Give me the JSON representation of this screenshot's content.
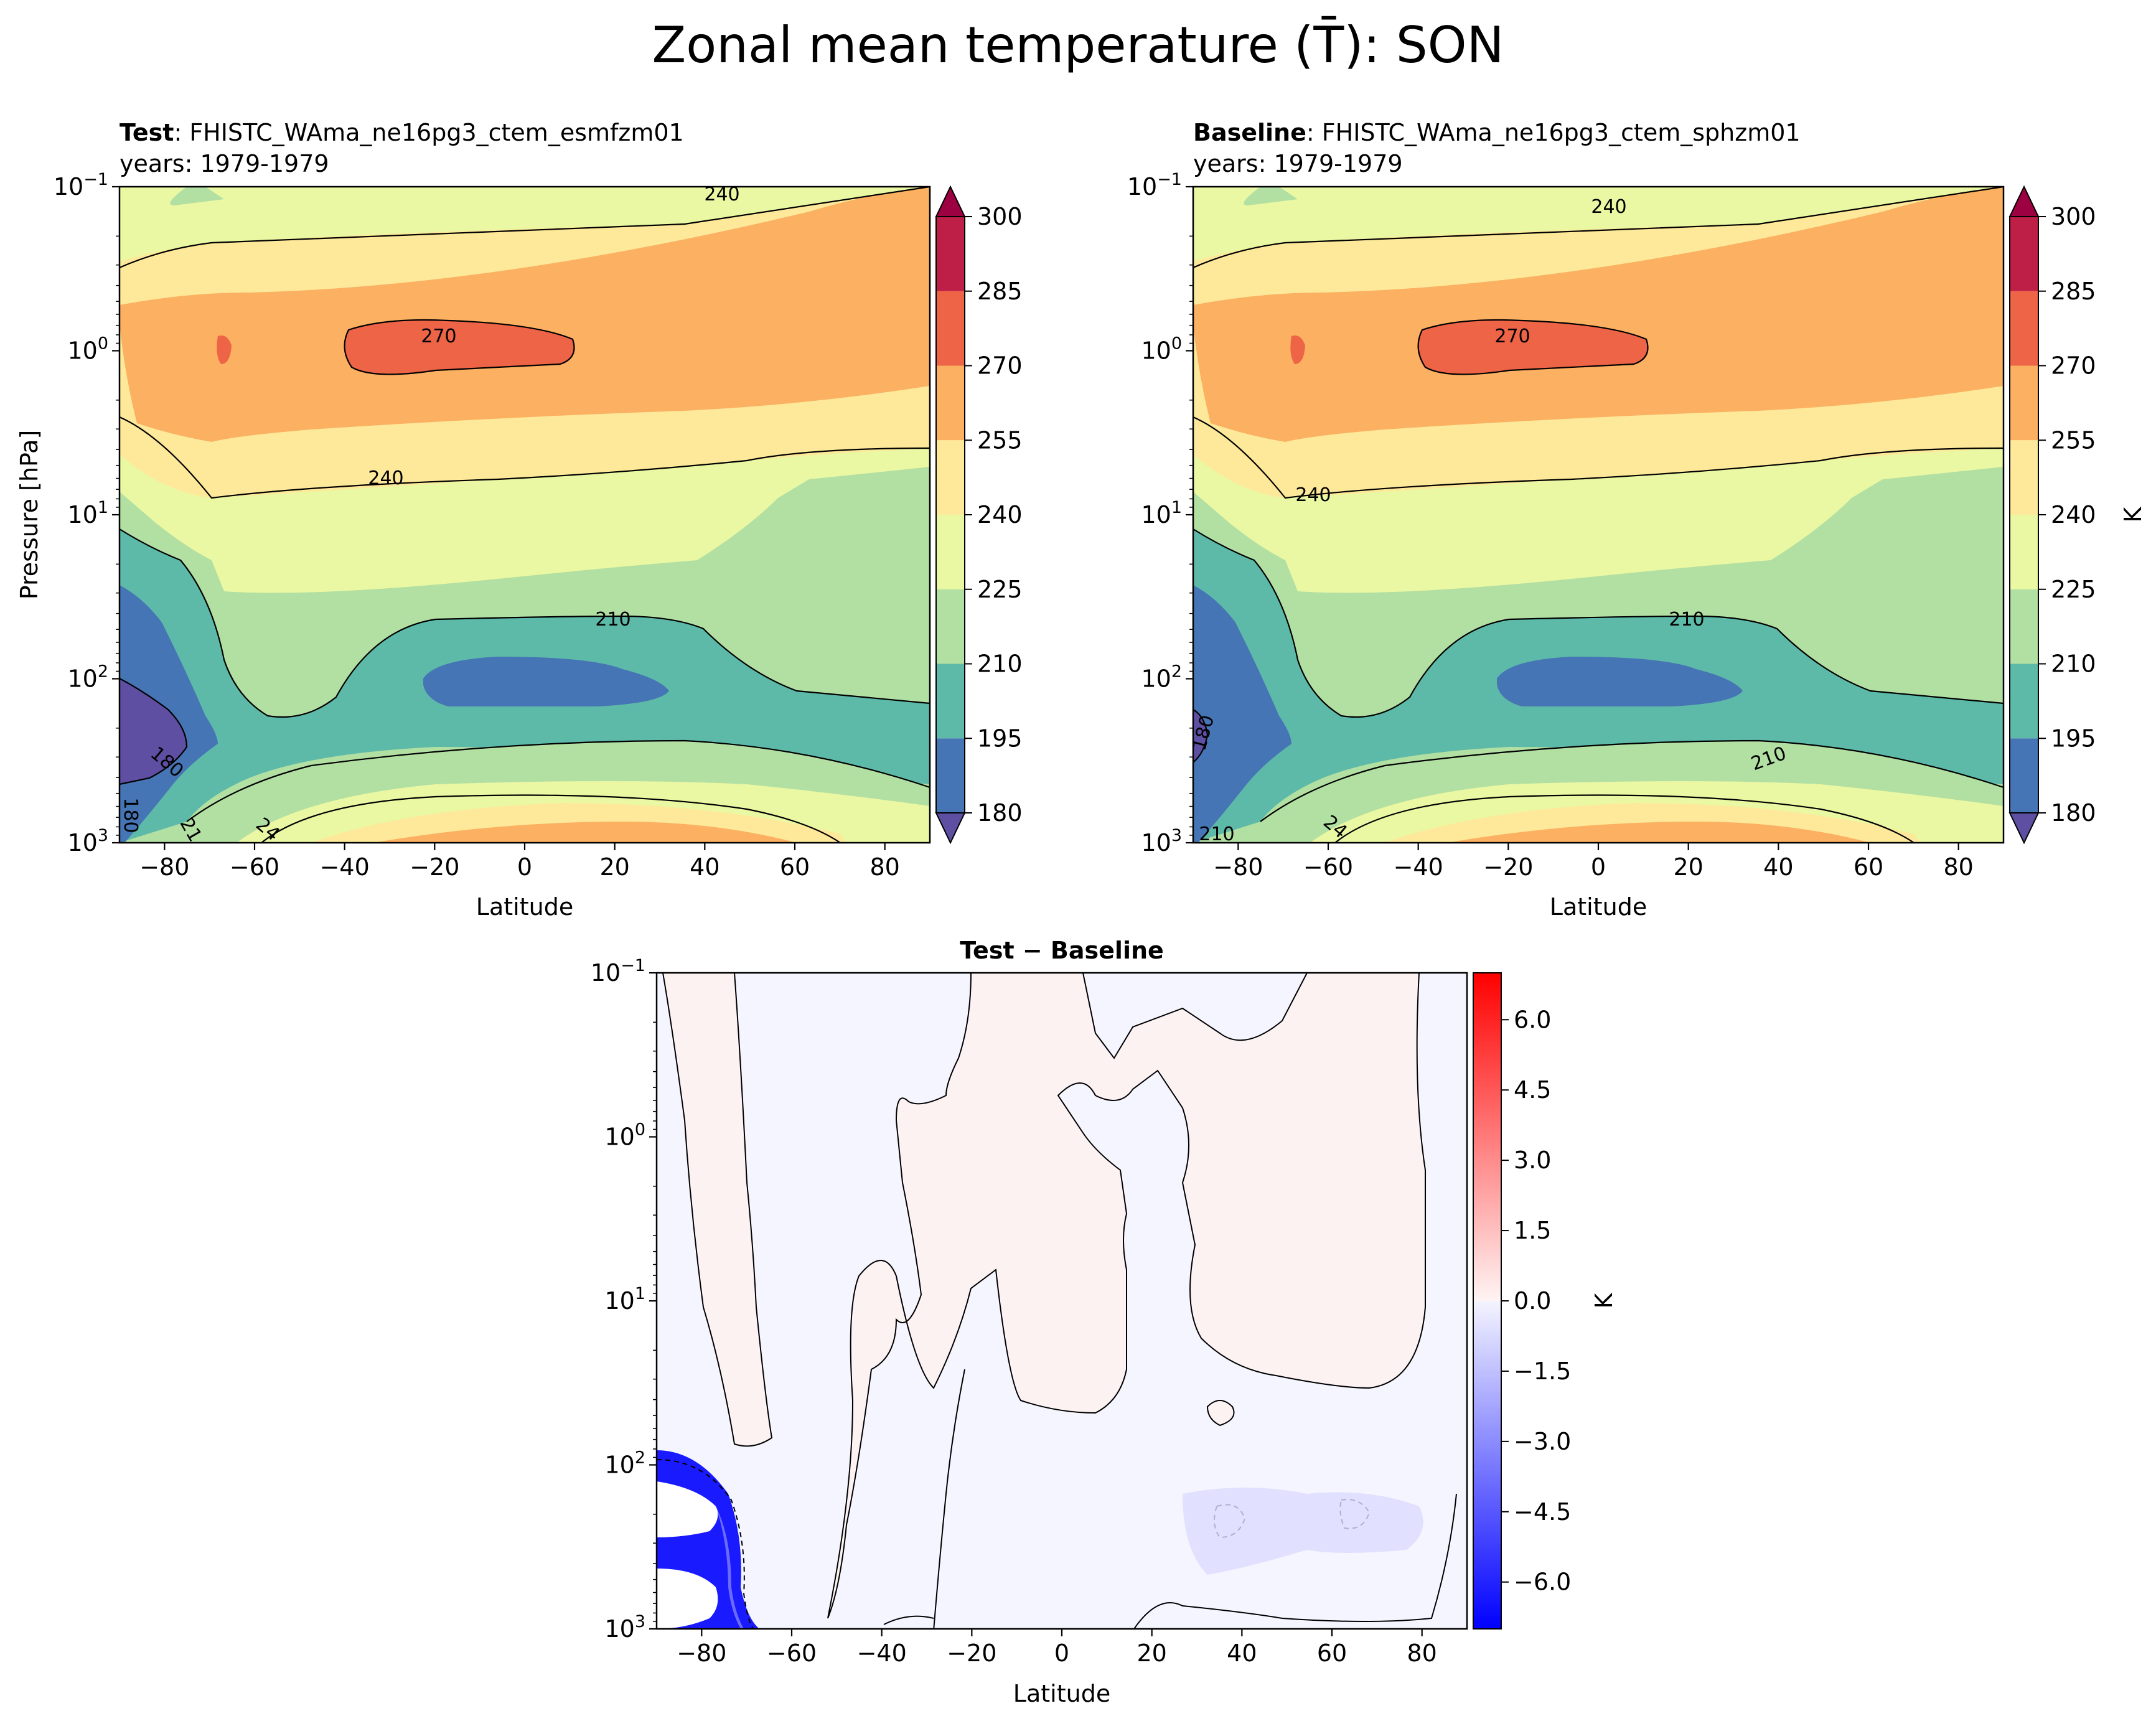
{
  "title": "Zonal mean temperature (T̄): SON",
  "chart_data": [
    {
      "type": "contour",
      "panel": "Test",
      "title_bold": "Test",
      "title_rest": ": FHISTC_WAma_ne16pg3_ctem_esmfzm01",
      "subtitle": "years: 1979-1979",
      "xlabel": "Latitude",
      "ylabel": "Pressure [hPa]",
      "xlim": [
        -90,
        90
      ],
      "xticks": [
        "−80",
        "−60",
        "−40",
        "−20",
        "0",
        "20",
        "40",
        "60",
        "80"
      ],
      "y_scale": "log, inverted",
      "ylim_hpa": [
        1000,
        0.1
      ],
      "yticks": [
        {
          "base": "10",
          "exp": "−1"
        },
        {
          "base": "10",
          "exp": "0"
        },
        {
          "base": "10",
          "exp": "1"
        },
        {
          "base": "10",
          "exp": "2"
        },
        {
          "base": "10",
          "exp": "3"
        }
      ],
      "contour_labels": [
        "240",
        "270",
        "240",
        "210",
        "180",
        "180",
        "21",
        "24"
      ],
      "colorbar": {
        "levels": [
          "180",
          "195",
          "210",
          "225",
          "240",
          "255",
          "270",
          "285",
          "300"
        ],
        "colors": [
          "#4575b4",
          "#5ebaa8",
          "#b2dfa2",
          "#eaf7a3",
          "#fee99a",
          "#fbb062",
          "#ed6446",
          "#bd1f46"
        ],
        "under_color": "#5e4fa2",
        "over_color": "#9e0142",
        "label": ""
      }
    },
    {
      "type": "contour",
      "panel": "Baseline",
      "title_bold": "Baseline",
      "title_rest": ": FHISTC_WAma_ne16pg3_ctem_sphzm01",
      "subtitle": "years: 1979-1979",
      "xlabel": "Latitude",
      "ylabel": "",
      "xlim": [
        -90,
        90
      ],
      "xticks": [
        "−80",
        "−60",
        "−40",
        "−20",
        "0",
        "20",
        "40",
        "60",
        "80"
      ],
      "y_scale": "log, inverted",
      "ylim_hpa": [
        1000,
        0.1
      ],
      "yticks": [
        {
          "base": "10",
          "exp": "−1"
        },
        {
          "base": "10",
          "exp": "0"
        },
        {
          "base": "10",
          "exp": "1"
        },
        {
          "base": "10",
          "exp": "2"
        },
        {
          "base": "10",
          "exp": "3"
        }
      ],
      "contour_labels": [
        "240",
        "270",
        "240",
        "210",
        "210",
        "180",
        "210",
        "24"
      ],
      "colorbar": {
        "levels": [
          "180",
          "195",
          "210",
          "225",
          "240",
          "255",
          "270",
          "285",
          "300"
        ],
        "colors": [
          "#4575b4",
          "#5ebaa8",
          "#b2dfa2",
          "#eaf7a3",
          "#fee99a",
          "#fbb062",
          "#ed6446",
          "#bd1f46"
        ],
        "under_color": "#5e4fa2",
        "over_color": "#9e0142",
        "label": "K"
      }
    },
    {
      "type": "contour",
      "panel": "Test − Baseline",
      "title": "Test − Baseline",
      "xlabel": "Latitude",
      "ylabel": "",
      "xlim": [
        -90,
        90
      ],
      "xticks": [
        "−80",
        "−60",
        "−40",
        "−20",
        "0",
        "20",
        "40",
        "60",
        "80"
      ],
      "y_scale": "log, inverted",
      "ylim_hpa": [
        1000,
        0.1
      ],
      "yticks": [
        {
          "base": "10",
          "exp": "−1"
        },
        {
          "base": "10",
          "exp": "0"
        },
        {
          "base": "10",
          "exp": "1"
        },
        {
          "base": "10",
          "exp": "2"
        },
        {
          "base": "10",
          "exp": "3"
        }
      ],
      "colorbar": {
        "range": [
          -7,
          7
        ],
        "ticks": [
          "6.0",
          "4.5",
          "3.0",
          "1.5",
          "0.0",
          "−1.5",
          "−3.0",
          "−4.5",
          "−6.0"
        ],
        "cmap": "bwr",
        "label": "K"
      }
    }
  ]
}
